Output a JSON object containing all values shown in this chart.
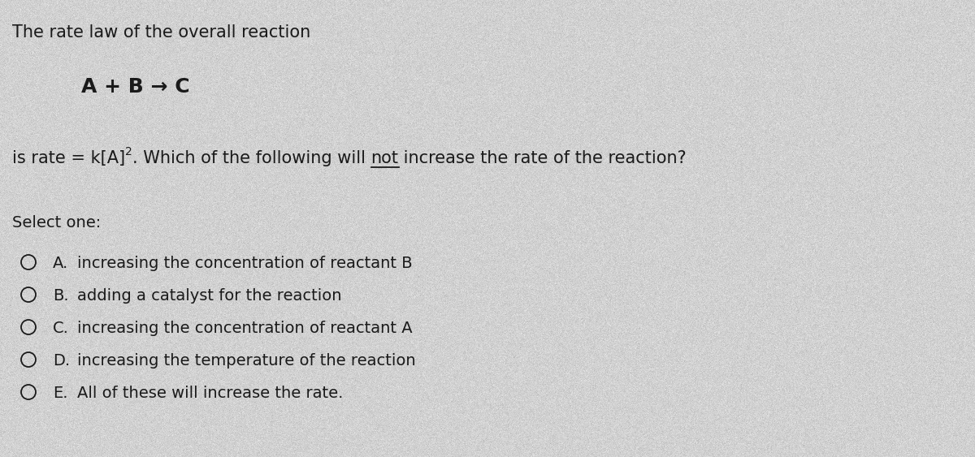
{
  "background_color": "#d0d0d0",
  "text_color": "#1a1a1a",
  "title_line1": "The rate law of the overall reaction",
  "reaction": "A + B → C",
  "select_one": "Select one:",
  "options": [
    {
      "letter": "A.",
      "text": "increasing the concentration of reactant B"
    },
    {
      "letter": "B.",
      "text": "adding a catalyst for the reaction"
    },
    {
      "letter": "C.",
      "text": "increasing the concentration of reactant A"
    },
    {
      "letter": "D.",
      "text": "increasing the temperature of the reaction"
    },
    {
      "letter": "E.",
      "text": "All of these will increase the rate."
    }
  ],
  "figsize": [
    12.0,
    5.63
  ],
  "dpi": 100
}
